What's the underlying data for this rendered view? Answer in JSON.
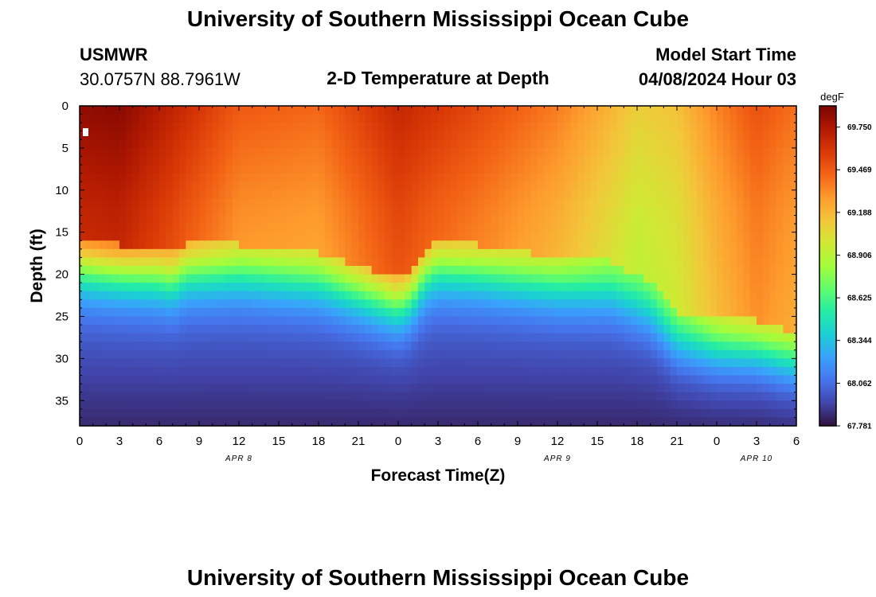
{
  "header": {
    "title": "University of Southern Mississippi Ocean Cube",
    "station": "USMWR",
    "coordinates": "30.0757N  88.7961W",
    "plot_title": "2-D Temperature at Depth",
    "model_label": "Model Start Time",
    "model_time": "04/08/2024 Hour 03"
  },
  "footer": {
    "title": "University of Southern Mississippi Ocean Cube"
  },
  "chart_data": {
    "type": "heatmap",
    "title": "2-D Temperature at Depth",
    "xlabel": "Forecast Time(Z)",
    "ylabel": "Depth (ft)",
    "xlim": [
      0,
      54
    ],
    "ylim": [
      38,
      0
    ],
    "x_ticks": [
      0,
      3,
      6,
      9,
      12,
      15,
      18,
      21,
      24,
      27,
      30,
      33,
      36,
      39,
      42,
      45,
      48,
      51,
      54
    ],
    "x_tick_labels": [
      "0",
      "3",
      "6",
      "9",
      "12",
      "15",
      "18",
      "21",
      "0",
      "3",
      "6",
      "9",
      "12",
      "15",
      "18",
      "21",
      "0",
      "3",
      "6"
    ],
    "y_ticks": [
      0,
      5,
      10,
      15,
      20,
      25,
      30,
      35
    ],
    "y_tick_labels": [
      "0",
      "5",
      "10",
      "15",
      "20",
      "25",
      "30",
      "35"
    ],
    "date_labels": [
      {
        "text": "APR 8",
        "x": 12
      },
      {
        "text": "APR 9",
        "x": 36
      },
      {
        "text": "APR 10",
        "x": 51
      }
    ],
    "colorbar": {
      "unit": "degF",
      "min": 67.781,
      "max": 69.89,
      "ticks": [
        69.75,
        69.469,
        69.188,
        68.906,
        68.625,
        68.344,
        68.062,
        67.781
      ],
      "tick_labels": [
        "69.750",
        "69.469",
        "69.188",
        "68.906",
        "68.625",
        "68.344",
        "68.062",
        "67.781"
      ],
      "colors": [
        "#30123b",
        "#4145ab",
        "#4675ed",
        "#39a2fc",
        "#1bcfd4",
        "#24eca6",
        "#61fc6c",
        "#a4fc3b",
        "#d1e834",
        "#f3c63a",
        "#fe9b2d",
        "#f36315",
        "#d93806",
        "#b11901",
        "#7a0402"
      ]
    },
    "thermocline_depth_by_time": {
      "x": [
        0,
        3,
        6,
        7,
        8,
        12,
        18,
        21,
        24,
        25,
        26,
        27,
        30,
        36,
        40,
        43,
        45,
        48,
        51,
        54
      ],
      "depth": [
        19,
        19.5,
        20,
        20.5,
        19.5,
        19.5,
        20.5,
        22,
        23.5,
        22.5,
        20,
        19,
        19.5,
        21,
        21.5,
        24,
        27.5,
        28.5,
        28.5,
        30
      ]
    },
    "surface_temperature_by_time": {
      "x": [
        0,
        3,
        6,
        9,
        12,
        18,
        24,
        30,
        36,
        40,
        42,
        45,
        48,
        51,
        54
      ],
      "temp": [
        69.78,
        69.8,
        69.68,
        69.55,
        69.42,
        69.38,
        69.62,
        69.48,
        69.32,
        69.15,
        69.05,
        69.1,
        69.3,
        69.45,
        69.35
      ]
    },
    "bottom_temperature": 67.85
  }
}
